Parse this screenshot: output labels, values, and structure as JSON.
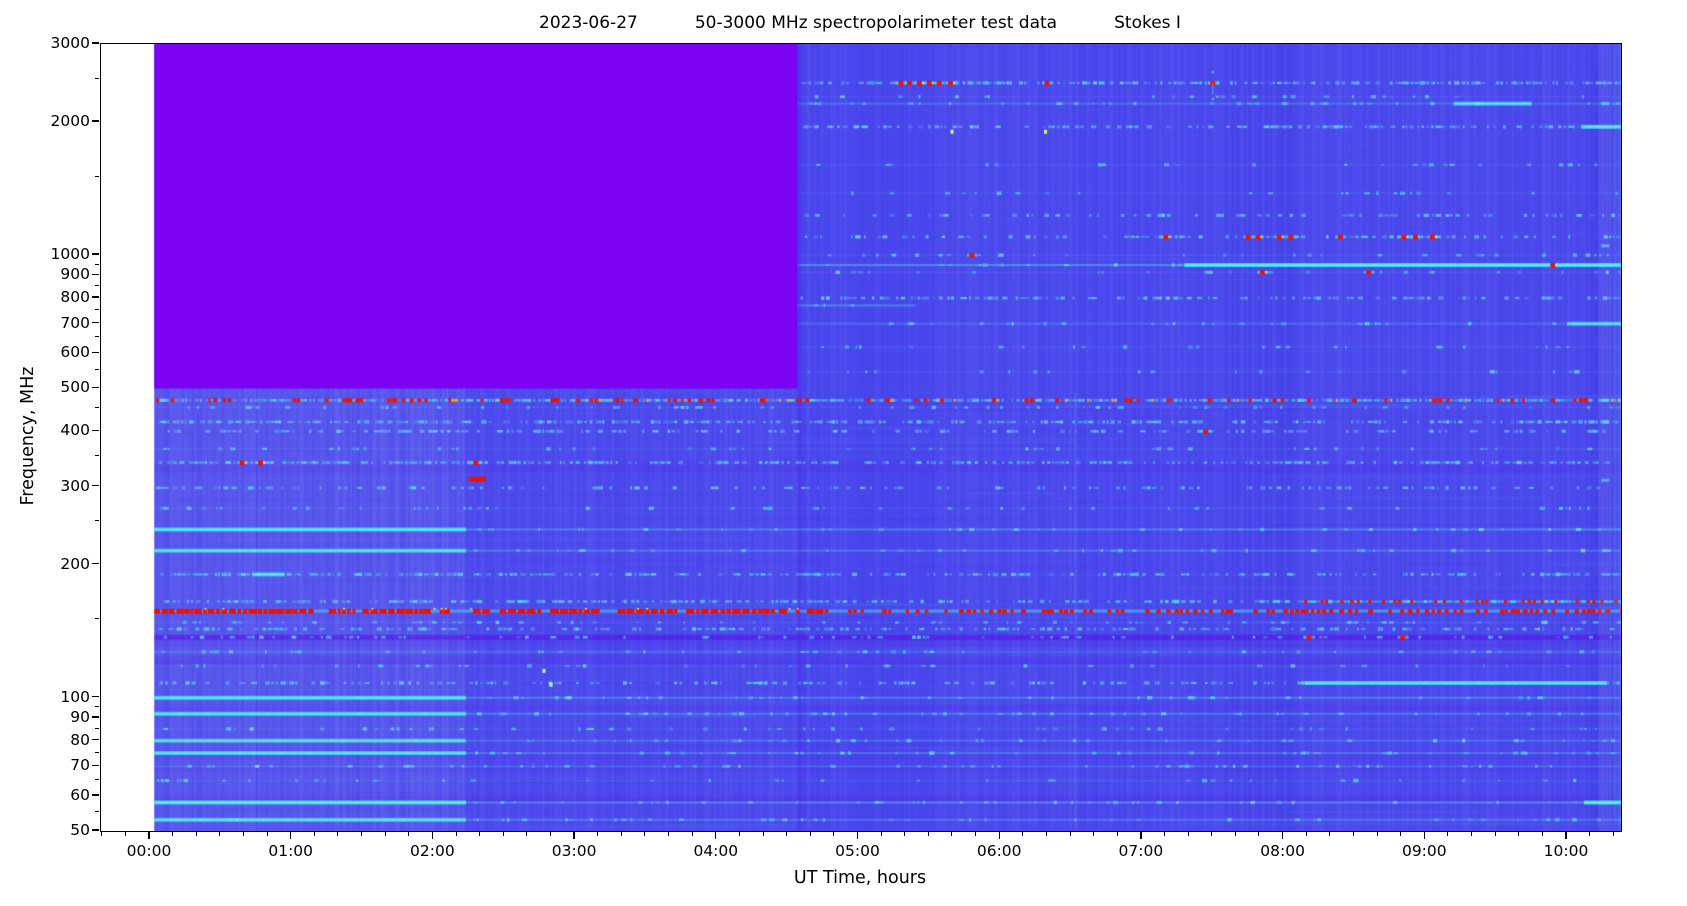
{
  "title": {
    "date": "2023-06-27",
    "main": "50-3000 MHz spectropolarimeter test data",
    "stokes": "Stokes I"
  },
  "x_axis": {
    "label": "UT Time, hours",
    "tick_hours": [
      0,
      1,
      2,
      3,
      4,
      5,
      6,
      7,
      8,
      9,
      10
    ],
    "tick_labels": [
      "00:00",
      "01:00",
      "02:00",
      "03:00",
      "04:00",
      "05:00",
      "06:00",
      "07:00",
      "08:00",
      "09:00",
      "10:00"
    ],
    "minor_step_hours": 0.166667,
    "range_hours": [
      -0.346,
      10.381
    ]
  },
  "y_axis": {
    "label": "Frequency, MHz",
    "scale": "log",
    "tick_values": [
      3000,
      2000,
      1000,
      900,
      800,
      700,
      600,
      500,
      400,
      300,
      200,
      100,
      90,
      80,
      70,
      60,
      50
    ],
    "tick_labels": [
      "3000",
      "2000",
      "1000",
      "900",
      "800",
      "700",
      "600",
      "500",
      "400",
      "300",
      "200",
      "100",
      "90",
      "80",
      "70",
      "60",
      "50"
    ],
    "minor_ticks": [
      2500,
      1500,
      950,
      850,
      750,
      650,
      550,
      450,
      350,
      250,
      150,
      95,
      85,
      75,
      65,
      55
    ],
    "range_mhz": [
      50,
      3000
    ]
  },
  "chart_data": {
    "type": "heatmap",
    "subtype": "dynamic-spectrum-spectrogram",
    "title": "2023-06-27    50-3000 MHz spectropolarimeter test data    Stokes I",
    "xlabel": "UT Time, hours",
    "ylabel": "Frequency, MHz",
    "x_range_hours": [
      -0.346,
      10.381
    ],
    "data_t": [
      0.03,
      10.38
    ],
    "y_scale": "log",
    "y_range_mhz": [
      50,
      3000
    ],
    "colors": {
      "background_blue": "#4a47ee",
      "nodata_purple": "#7b03f1",
      "speckle_cyan": "#3ad2e8",
      "bright_cyan": "#57efe2",
      "rfi_red": "#ea1200",
      "orange": "#ff9810",
      "yellow": "#e8f060",
      "dark_violet": "#6414ee"
    },
    "no_data_block": {
      "t0": 0.03,
      "t1": 4.57,
      "f_low_mhz": 500,
      "f_high_mhz": 3000
    },
    "regions": [
      {
        "name": "bright-textured-low-band-early",
        "t0": 0.03,
        "t1": 2.23,
        "f0": 50,
        "f1": 500,
        "lighten": 0.055
      },
      {
        "name": "mid-low-band",
        "t0": 2.23,
        "t1": 4.57,
        "f0": 50,
        "f1": 500,
        "lighten": 0.02
      }
    ],
    "bands": [
      {
        "f": 2450,
        "t0": 4.57,
        "style": "speckle",
        "d": 0.75,
        "red_events": [
          5.3,
          5.36,
          5.43,
          5.5,
          5.57,
          5.65,
          6.33,
          7.5
        ]
      },
      {
        "f": 2280,
        "t0": 4.57,
        "style": "faint",
        "d": 0.25
      },
      {
        "f": 2200,
        "t0": 4.57,
        "style": "line",
        "a": 0.3,
        "bright": [
          [
            9.2,
            9.75
          ]
        ]
      },
      {
        "f": 1950,
        "t0": 4.57,
        "style": "speckle",
        "d": 0.55,
        "bright": [
          [
            10.1,
            10.38
          ]
        ]
      },
      {
        "f": 1600,
        "t0": 4.57,
        "style": "faint",
        "d": 0.22
      },
      {
        "f": 1380,
        "t0": 4.57,
        "style": "faint",
        "d": 0.18
      },
      {
        "f": 1230,
        "t0": 4.57,
        "style": "speckle",
        "d": 0.3
      },
      {
        "f": 1100,
        "t0": 4.57,
        "style": "speckle",
        "d": 0.35,
        "red_events": [
          7.17,
          7.75,
          7.82,
          7.97,
          8.05,
          8.4,
          8.85,
          8.93,
          9.05
        ]
      },
      {
        "f": 1000,
        "t0": 4.57,
        "style": "faint",
        "d": 0.25,
        "red_events": [
          5.8
        ]
      },
      {
        "f": 950,
        "t0": 4.57,
        "style": "line",
        "a": 0.5,
        "bright": [
          [
            7.3,
            10.38
          ]
        ],
        "red_events": [
          9.9
        ]
      },
      {
        "f": 915,
        "t0": 4.57,
        "style": "faint",
        "d": 0.22,
        "red_events": [
          7.85,
          8.6
        ]
      },
      {
        "f": 800,
        "t0": 4.57,
        "style": "speckle",
        "d": 0.45
      },
      {
        "f": 770,
        "t0": 4.57,
        "t1": 5.4,
        "style": "line",
        "a": 0.45
      },
      {
        "f": 700,
        "t0": 4.57,
        "style": "line",
        "a": 0.28,
        "bright": [
          [
            10.0,
            10.38
          ]
        ]
      },
      {
        "f": 620,
        "t0": 4.57,
        "style": "faint",
        "d": 0.2
      },
      {
        "f": 545,
        "t0": 4.57,
        "style": "faint",
        "d": 0.18
      },
      {
        "f": 470,
        "style": "speckle-red",
        "d": 0.95
      },
      {
        "f": 453,
        "style": "faint",
        "d": 0.28
      },
      {
        "f": 420,
        "style": "speckle",
        "d": 0.65
      },
      {
        "f": 400,
        "style": "speckle",
        "d": 0.38,
        "red_events": [
          7.45
        ]
      },
      {
        "f": 365,
        "style": "faint",
        "d": 0.28
      },
      {
        "f": 340,
        "style": "speckle",
        "d": 0.6,
        "red_events": [
          0.65,
          0.78,
          2.3
        ]
      },
      {
        "f": 312,
        "t0": 2.25,
        "t1": 2.37,
        "style": "red-solid"
      },
      {
        "f": 298,
        "style": "speckle",
        "d": 0.32
      },
      {
        "f": 268,
        "style": "faint",
        "d": 0.26
      },
      {
        "f": 240,
        "style": "line",
        "a": 0.42,
        "bright": [
          [
            0.03,
            2.23
          ]
        ]
      },
      {
        "f": 215,
        "style": "line",
        "a": 0.35,
        "bright": [
          [
            0.03,
            2.23
          ]
        ]
      },
      {
        "f": 190,
        "style": "speckle",
        "d": 0.55,
        "bright": [
          [
            0.72,
            0.95
          ]
        ]
      },
      {
        "f": 165,
        "style": "speckle",
        "d": 0.55,
        "red_dotted": [
          [
            8.1,
            10.38
          ]
        ]
      },
      {
        "f": 157,
        "style": "red-line"
      },
      {
        "f": 148,
        "style": "faint",
        "d": 0.3
      },
      {
        "f": 143,
        "style": "speckle",
        "d": 0.42
      },
      {
        "f": 137,
        "style": "dark-dots",
        "red_events": [
          8.18,
          8.84
        ]
      },
      {
        "f": 127,
        "style": "line",
        "a": 0.26
      },
      {
        "f": 118,
        "style": "faint",
        "d": 0.22
      },
      {
        "f": 108,
        "style": "speckle",
        "d": 0.35,
        "bright": [
          [
            8.15,
            10.28
          ]
        ]
      },
      {
        "f": 100,
        "style": "line",
        "a": 0.4,
        "bright": [
          [
            0.03,
            2.23
          ]
        ]
      },
      {
        "f": 92,
        "style": "line",
        "a": 0.35,
        "bright": [
          [
            0.03,
            2.23
          ]
        ]
      },
      {
        "f": 85,
        "style": "faint",
        "d": 0.22
      },
      {
        "f": 80,
        "style": "line",
        "a": 0.3,
        "bright": [
          [
            0.03,
            2.23
          ]
        ]
      },
      {
        "f": 75,
        "style": "line",
        "a": 0.35,
        "bright": [
          [
            0.03,
            2.23
          ]
        ]
      },
      {
        "f": 70,
        "style": "line",
        "a": 0.28
      },
      {
        "f": 65,
        "style": "faint",
        "d": 0.22
      },
      {
        "f": 58,
        "style": "line",
        "a": 0.55,
        "bright": [
          [
            0.03,
            2.23
          ],
          [
            10.12,
            10.38
          ]
        ]
      },
      {
        "f": 53,
        "style": "line",
        "a": 0.35,
        "bright": [
          [
            0.03,
            2.23
          ]
        ]
      }
    ],
    "dots": [
      {
        "t": 2.78,
        "f": 115,
        "c": "bright"
      },
      {
        "t": 2.83,
        "f": 107,
        "c": "bright"
      },
      {
        "t": 5.66,
        "f": 1900,
        "c": "yellow"
      },
      {
        "t": 6.32,
        "f": 1900,
        "c": "yellow"
      }
    ],
    "streaks": [
      {
        "t": 4.585,
        "f0": 50,
        "f1": 3000,
        "style": "dark-edge"
      },
      {
        "t": 6.53,
        "f0": 50,
        "f1": 490,
        "style": "faint"
      },
      {
        "t": 7.5,
        "f0": 2250,
        "f1": 2650,
        "style": "cyan"
      },
      {
        "t": 10.27,
        "f0": 50,
        "f1": 3000,
        "style": "column"
      }
    ]
  }
}
